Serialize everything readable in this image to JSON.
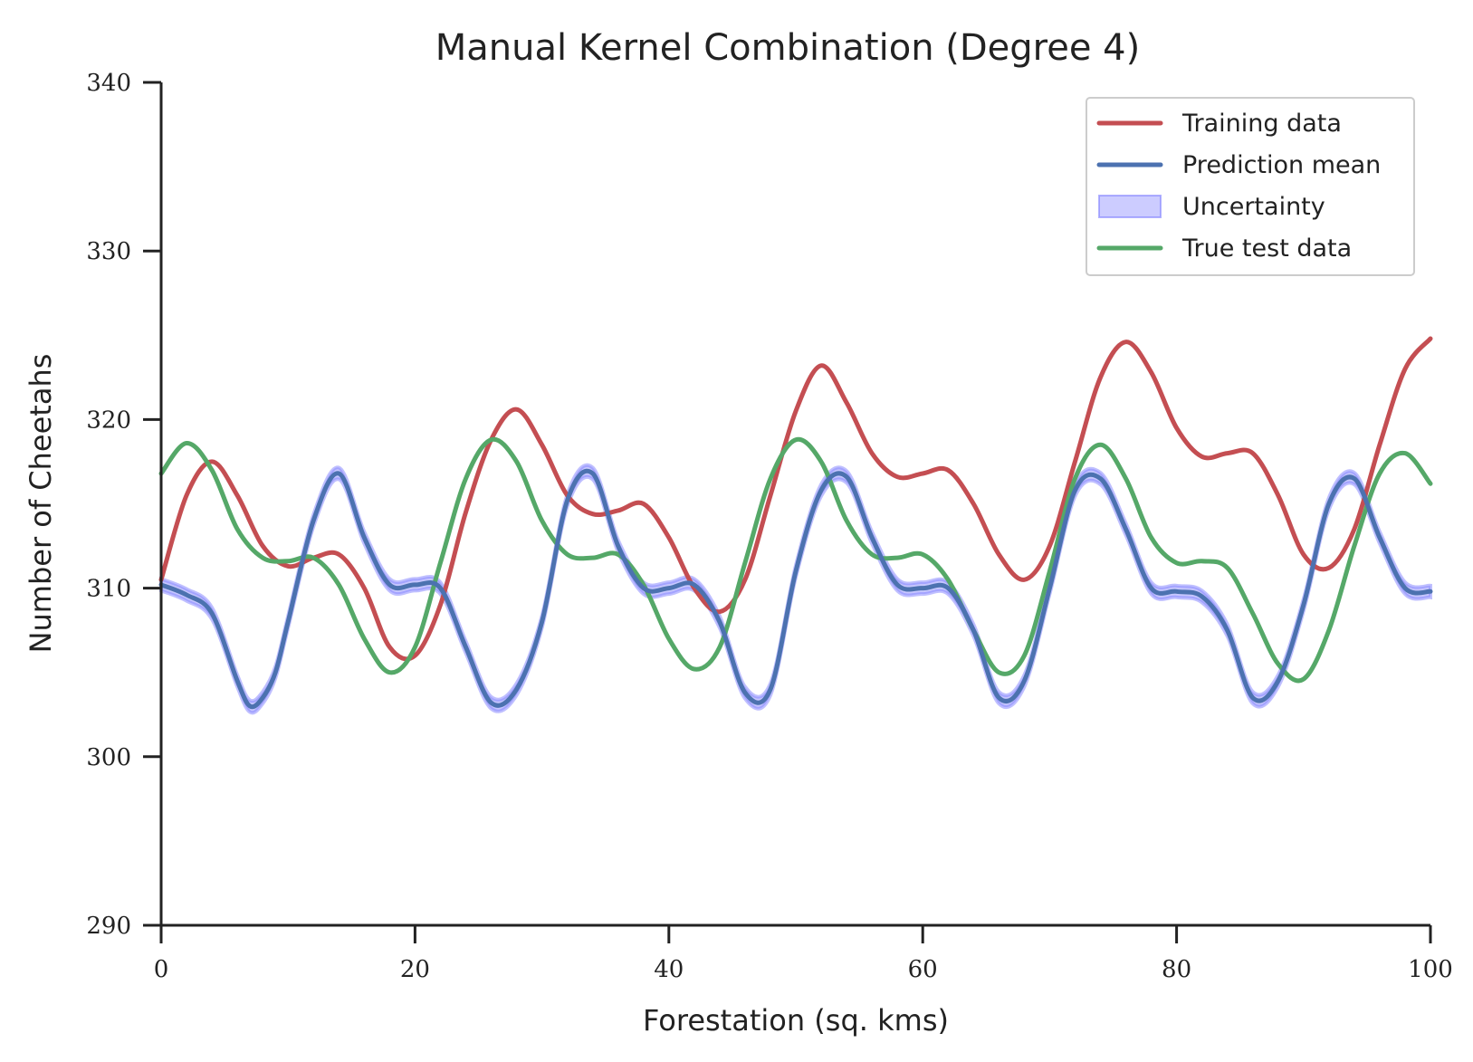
{
  "chart_data": {
    "type": "line",
    "title": "Manual Kernel Combination (Degree 4)",
    "xlabel": "Forestation (sq. kms)",
    "ylabel": "Number of Cheetahs",
    "xlim": [
      0,
      100
    ],
    "ylim": [
      290,
      340
    ],
    "xticks": [
      0,
      20,
      40,
      60,
      80,
      100
    ],
    "yticks": [
      290,
      300,
      310,
      320,
      330,
      340
    ],
    "grid": false,
    "legend_position": "top-right",
    "series": [
      {
        "name": "Training data",
        "kind": "line",
        "color": "#c44e52",
        "points": [
          [
            0,
            310.5
          ],
          [
            2,
            315.5
          ],
          [
            4,
            317.5
          ],
          [
            6,
            315.5
          ],
          [
            8,
            312.5
          ],
          [
            10,
            311.3
          ],
          [
            12,
            311.8
          ],
          [
            14,
            312
          ],
          [
            16,
            310
          ],
          [
            18,
            306.5
          ],
          [
            20,
            306
          ],
          [
            22,
            309
          ],
          [
            24,
            314.5
          ],
          [
            26,
            318.8
          ],
          [
            28,
            320.6
          ],
          [
            30,
            318.5
          ],
          [
            32,
            315.5
          ],
          [
            34,
            314.4
          ],
          [
            36,
            314.6
          ],
          [
            38,
            315
          ],
          [
            40,
            313
          ],
          [
            42,
            310
          ],
          [
            44,
            308.6
          ],
          [
            46,
            310.5
          ],
          [
            48,
            315.5
          ],
          [
            50,
            320.5
          ],
          [
            52,
            323.2
          ],
          [
            54,
            321
          ],
          [
            56,
            318
          ],
          [
            58,
            316.6
          ],
          [
            60,
            316.8
          ],
          [
            62,
            317
          ],
          [
            64,
            315
          ],
          [
            66,
            312
          ],
          [
            68,
            310.5
          ],
          [
            70,
            312.5
          ],
          [
            72,
            317.5
          ],
          [
            74,
            322.5
          ],
          [
            76,
            324.6
          ],
          [
            78,
            322.8
          ],
          [
            80,
            319.5
          ],
          [
            82,
            317.8
          ],
          [
            84,
            318
          ],
          [
            86,
            318
          ],
          [
            88,
            315.5
          ],
          [
            90,
            312
          ],
          [
            92,
            311.2
          ],
          [
            94,
            313.5
          ],
          [
            96,
            318.5
          ],
          [
            98,
            323
          ],
          [
            100,
            324.8
          ]
        ]
      },
      {
        "name": "Prediction mean",
        "kind": "line",
        "color": "#4c72b0",
        "points": [
          [
            0,
            310.2
          ],
          [
            2,
            309.6
          ],
          [
            4,
            308.5
          ],
          [
            6,
            304.5
          ],
          [
            7,
            303
          ],
          [
            8,
            303.5
          ],
          [
            9,
            305
          ],
          [
            10,
            308
          ],
          [
            12,
            314
          ],
          [
            14,
            316.8
          ],
          [
            16,
            313
          ],
          [
            18,
            310.2
          ],
          [
            20,
            310.2
          ],
          [
            22,
            310
          ],
          [
            24,
            306.5
          ],
          [
            26,
            303.2
          ],
          [
            28,
            304
          ],
          [
            30,
            308
          ],
          [
            32,
            315.2
          ],
          [
            34,
            316.8
          ],
          [
            36,
            312.5
          ],
          [
            38,
            310
          ],
          [
            40,
            310
          ],
          [
            42,
            310.2
          ],
          [
            44,
            308
          ],
          [
            46,
            303.8
          ],
          [
            48,
            304
          ],
          [
            50,
            311
          ],
          [
            52,
            315.8
          ],
          [
            54,
            316.6
          ],
          [
            56,
            313
          ],
          [
            58,
            310.2
          ],
          [
            60,
            310
          ],
          [
            62,
            310
          ],
          [
            64,
            307.5
          ],
          [
            66,
            303.5
          ],
          [
            68,
            304.5
          ],
          [
            70,
            310
          ],
          [
            72,
            315.8
          ],
          [
            74,
            316.5
          ],
          [
            76,
            313.5
          ],
          [
            78,
            310
          ],
          [
            80,
            309.8
          ],
          [
            82,
            309.5
          ],
          [
            84,
            307.5
          ],
          [
            86,
            303.5
          ],
          [
            88,
            304.5
          ],
          [
            90,
            309
          ],
          [
            92,
            315
          ],
          [
            94,
            316.5
          ],
          [
            96,
            313
          ],
          [
            98,
            310
          ],
          [
            100,
            309.8
          ]
        ]
      },
      {
        "name": "Uncertainty",
        "kind": "band",
        "color": "#8080ff",
        "half_width": 0.35
      },
      {
        "name": "True test data",
        "kind": "line",
        "color": "#55a868",
        "points": [
          [
            0,
            316.8
          ],
          [
            2,
            318.6
          ],
          [
            4,
            317
          ],
          [
            6,
            313.5
          ],
          [
            8,
            311.8
          ],
          [
            10,
            311.6
          ],
          [
            12,
            311.8
          ],
          [
            14,
            310.2
          ],
          [
            16,
            307
          ],
          [
            18,
            305
          ],
          [
            20,
            306.5
          ],
          [
            22,
            311.5
          ],
          [
            24,
            316.5
          ],
          [
            26,
            318.8
          ],
          [
            28,
            317.5
          ],
          [
            30,
            314
          ],
          [
            32,
            312
          ],
          [
            34,
            311.8
          ],
          [
            36,
            312
          ],
          [
            38,
            310.2
          ],
          [
            40,
            307
          ],
          [
            42,
            305.2
          ],
          [
            44,
            306.5
          ],
          [
            46,
            311.5
          ],
          [
            48,
            316.5
          ],
          [
            50,
            318.8
          ],
          [
            52,
            317.5
          ],
          [
            54,
            314
          ],
          [
            56,
            312
          ],
          [
            58,
            311.8
          ],
          [
            60,
            312
          ],
          [
            62,
            310.5
          ],
          [
            64,
            307.5
          ],
          [
            66,
            305
          ],
          [
            68,
            306
          ],
          [
            70,
            311
          ],
          [
            72,
            316.5
          ],
          [
            74,
            318.5
          ],
          [
            76,
            316.5
          ],
          [
            78,
            313
          ],
          [
            80,
            311.5
          ],
          [
            82,
            311.6
          ],
          [
            84,
            311.2
          ],
          [
            86,
            308.5
          ],
          [
            88,
            305.5
          ],
          [
            90,
            304.6
          ],
          [
            92,
            307.5
          ],
          [
            94,
            312.5
          ],
          [
            96,
            316.8
          ],
          [
            98,
            318
          ],
          [
            100,
            316.2
          ]
        ]
      }
    ]
  }
}
